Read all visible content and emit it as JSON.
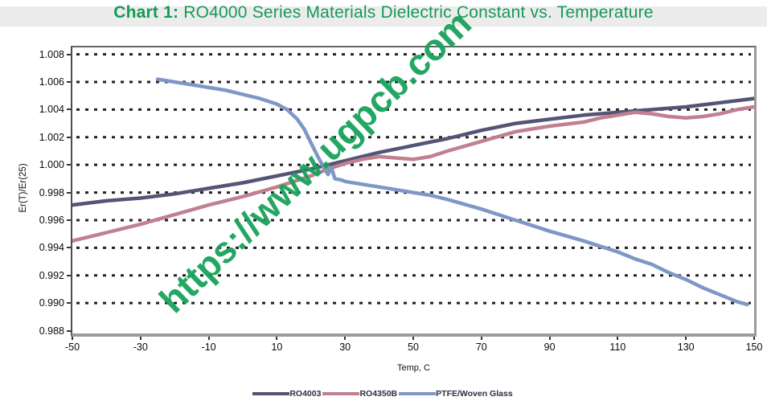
{
  "title": {
    "prefix": "Chart 1:",
    "text": " RO4000 Series Materials Dielectric Constant vs. Temperature"
  },
  "watermark": "https://www.ugpcb.com",
  "colors": {
    "title_green": "#169a56",
    "watermark_green": "#18a35b",
    "grid": "#222222",
    "frame_gray": "#9b9b9b",
    "ro4003": "#545476",
    "ro4350b": "#c08090",
    "ptfe": "#7d98c5"
  },
  "chart_data": {
    "type": "line",
    "title": "RO4000 Series Materials Dielectric Constant vs. Temperature",
    "xlabel": "Temp, C",
    "ylabel": "Er(T)/Er(25)",
    "xlim": [
      -50,
      150
    ],
    "ylim": [
      0.988,
      1.008
    ],
    "grid": "horizontal dotted lines every 0.002",
    "legend_position": "bottom center",
    "x_tick_values": [
      -50,
      -30,
      -10,
      10,
      30,
      50,
      70,
      90,
      110,
      130,
      150
    ],
    "x_tick_labels": [
      "-50",
      "-30",
      "-10",
      "10",
      "30",
      "50",
      "70",
      "90",
      "110",
      "130",
      "150"
    ],
    "y_tick_values": [
      1.008,
      1.006,
      1.004,
      1.002,
      1.0,
      0.998,
      0.996,
      0.994,
      0.992,
      0.99,
      0.988
    ],
    "y_tick_labels": [
      "1.008",
      "1.006",
      "1.004",
      "1.002",
      "1.000",
      "0.998",
      "0.996",
      "0.994",
      "0.992",
      "0.990",
      "0.988"
    ],
    "series": [
      {
        "name": "RO4003",
        "color": "#545476",
        "points": [
          [
            -50,
            0.9971
          ],
          [
            -40,
            0.9974
          ],
          [
            -30,
            0.9976
          ],
          [
            -20,
            0.9979
          ],
          [
            -10,
            0.9983
          ],
          [
            0,
            0.9987
          ],
          [
            10,
            0.9992
          ],
          [
            20,
            0.9997
          ],
          [
            30,
            1.0003
          ],
          [
            40,
            1.0009
          ],
          [
            50,
            1.0014
          ],
          [
            60,
            1.0019
          ],
          [
            70,
            1.0025
          ],
          [
            80,
            1.003
          ],
          [
            90,
            1.0033
          ],
          [
            100,
            1.0036
          ],
          [
            110,
            1.0038
          ],
          [
            120,
            1.004
          ],
          [
            130,
            1.0042
          ],
          [
            140,
            1.0045
          ],
          [
            150,
            1.0048
          ]
        ]
      },
      {
        "name": "RO4350B",
        "color": "#c08090",
        "points": [
          [
            -50,
            0.9945
          ],
          [
            -40,
            0.9951
          ],
          [
            -30,
            0.9957
          ],
          [
            -20,
            0.9964
          ],
          [
            -10,
            0.9971
          ],
          [
            0,
            0.9977
          ],
          [
            10,
            0.9984
          ],
          [
            20,
            0.9992
          ],
          [
            25,
            0.9997
          ],
          [
            30,
            1.0001
          ],
          [
            35,
            1.0004
          ],
          [
            40,
            1.0006
          ],
          [
            45,
            1.0005
          ],
          [
            50,
            1.0004
          ],
          [
            55,
            1.0006
          ],
          [
            60,
            1.001
          ],
          [
            70,
            1.0017
          ],
          [
            80,
            1.0024
          ],
          [
            90,
            1.0028
          ],
          [
            100,
            1.0031
          ],
          [
            105,
            1.0034
          ],
          [
            110,
            1.0036
          ],
          [
            115,
            1.0038
          ],
          [
            120,
            1.0037
          ],
          [
            125,
            1.0035
          ],
          [
            130,
            1.0034
          ],
          [
            135,
            1.0035
          ],
          [
            140,
            1.0037
          ],
          [
            145,
            1.004
          ],
          [
            150,
            1.0042
          ]
        ]
      },
      {
        "name": "PTFE/Woven Glass",
        "color": "#7d98c5",
        "points": [
          [
            -25,
            1.0062
          ],
          [
            -20,
            1.006
          ],
          [
            -15,
            1.0058
          ],
          [
            -10,
            1.0056
          ],
          [
            -5,
            1.0054
          ],
          [
            0,
            1.0051
          ],
          [
            5,
            1.0048
          ],
          [
            10,
            1.0044
          ],
          [
            13,
            1.004
          ],
          [
            16,
            1.0033
          ],
          [
            18,
            1.0026
          ],
          [
            20,
            1.0016
          ],
          [
            22,
            1.0006
          ],
          [
            24,
            0.9997
          ],
          [
            25,
            0.9993
          ],
          [
            26,
            0.9998
          ],
          [
            27,
            0.999
          ],
          [
            29,
            0.9989
          ],
          [
            30,
            0.9988
          ],
          [
            35,
            0.9986
          ],
          [
            40,
            0.9984
          ],
          [
            45,
            0.9982
          ],
          [
            50,
            0.998
          ],
          [
            55,
            0.9978
          ],
          [
            60,
            0.9975
          ],
          [
            70,
            0.9968
          ],
          [
            80,
            0.996
          ],
          [
            90,
            0.9952
          ],
          [
            100,
            0.9945
          ],
          [
            105,
            0.9941
          ],
          [
            110,
            0.9937
          ],
          [
            115,
            0.9932
          ],
          [
            120,
            0.9928
          ],
          [
            125,
            0.9922
          ],
          [
            130,
            0.9917
          ],
          [
            135,
            0.9911
          ],
          [
            140,
            0.9906
          ],
          [
            145,
            0.9901
          ],
          [
            148,
            0.9899
          ]
        ]
      }
    ]
  }
}
